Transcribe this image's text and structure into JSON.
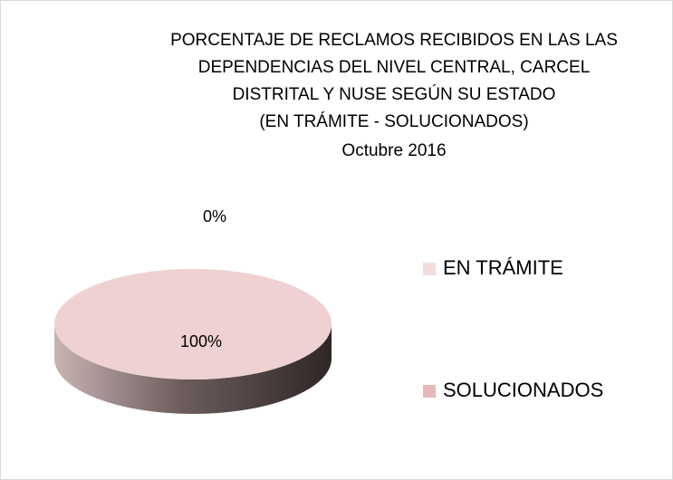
{
  "chart_data": {
    "type": "pie3d",
    "title": [
      "PORCENTAJE DE RECLAMOS RECIBIDOS EN  LAS LAS",
      "DEPENDENCIAS DEL NIVEL CENTRAL, CARCEL",
      "DISTRITAL Y NUSE  SEGÚN SU ESTADO",
      "(EN TRÁMITE - SOLUCIONADOS)"
    ],
    "subtitle": "Octubre  2016",
    "categories": [
      "EN TRÁMITE",
      "SOLUCIONADOS"
    ],
    "values": [
      0,
      100
    ],
    "value_labels": [
      "0%",
      "100%"
    ],
    "colors": [
      "#f2dcdb",
      "#e6b9b8"
    ],
    "legend": "right"
  }
}
